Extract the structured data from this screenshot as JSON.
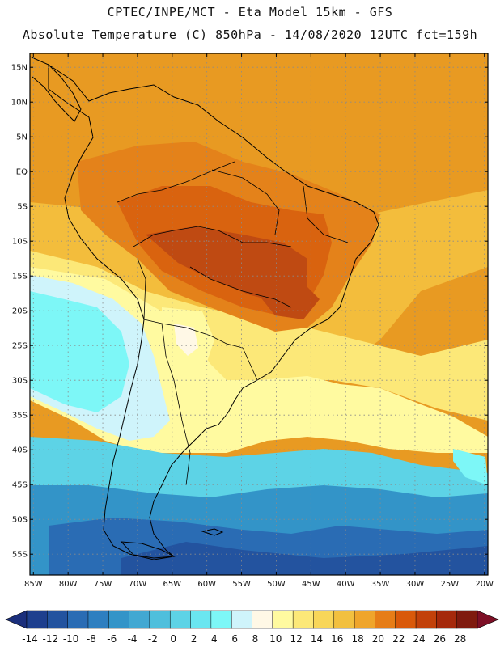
{
  "header": {
    "line1": "CPTEC/INPE/MCT -  Eta Model 15km - GFS",
    "line2": "Absolute Temperature (C) 850hPa - 14/08/2020 12UTC fct=159h"
  },
  "map": {
    "lat_labels": [
      "15N",
      "10N",
      "5N",
      "EQ",
      "5S",
      "10S",
      "15S",
      "20S",
      "25S",
      "30S",
      "35S",
      "40S",
      "45S",
      "50S",
      "55S"
    ],
    "lat_values": [
      15,
      10,
      5,
      0,
      -5,
      -10,
      -15,
      -20,
      -25,
      -30,
      -35,
      -40,
      -45,
      -50,
      -55
    ],
    "lon_labels": [
      "85W",
      "80W",
      "75W",
      "70W",
      "65W",
      "60W",
      "55W",
      "50W",
      "45W",
      "40W",
      "35W",
      "30W",
      "25W",
      "20W"
    ],
    "lon_values": [
      -85,
      -80,
      -75,
      -70,
      -65,
      -60,
      -55,
      -50,
      -45,
      -40,
      -35,
      -30,
      -25,
      -20
    ],
    "extent": {
      "lon_min": -85.5,
      "lon_max": -19.5,
      "lat_min": -58,
      "lat_max": 17
    }
  },
  "colorbar": {
    "labels": [
      "-14",
      "-12",
      "-10",
      "-8",
      "-6",
      "-4",
      "-2",
      "0",
      "2",
      "4",
      "6",
      "8",
      "10",
      "12",
      "14",
      "16",
      "18",
      "20",
      "22",
      "24",
      "26",
      "28"
    ],
    "colors": [
      "#1e3f8e",
      "#23539f",
      "#2a6cb4",
      "#2e7fc0",
      "#3394c8",
      "#42a8d2",
      "#4fbfdc",
      "#5dd3e6",
      "#6ae6f0",
      "#7df7f7",
      "#cff4fb",
      "#fff8e6",
      "#fffaa0",
      "#fce878",
      "#f8d659",
      "#f2c03f",
      "#efa52b",
      "#e67d17",
      "#d9590a",
      "#c2410a",
      "#a5290b",
      "#7f1a0e"
    ],
    "under_color": "#1b2f7c",
    "over_color": "#7d0f26"
  },
  "field": {
    "bands": [
      {
        "name": "band-28",
        "color": "#bf4a12"
      },
      {
        "name": "band-26",
        "color": "#d9630f"
      },
      {
        "name": "band-24",
        "color": "#e4821a"
      },
      {
        "name": "band-22",
        "color": "#efa52b"
      },
      {
        "name": "band-20",
        "color": "#f3bd3c"
      },
      {
        "name": "band-18",
        "color": "#fce878"
      },
      {
        "name": "band-14",
        "color": "#fffaa0"
      },
      {
        "name": "band-10",
        "color": "#cff4fb"
      },
      {
        "name": "band-8",
        "color": "#7df7f7"
      },
      {
        "name": "band-6",
        "color": "#5dd3e6"
      },
      {
        "name": "band-4",
        "color": "#3394c8"
      },
      {
        "name": "band-2",
        "color": "#2a6cb4"
      },
      {
        "name": "band-0",
        "color": "#23539f"
      }
    ]
  }
}
